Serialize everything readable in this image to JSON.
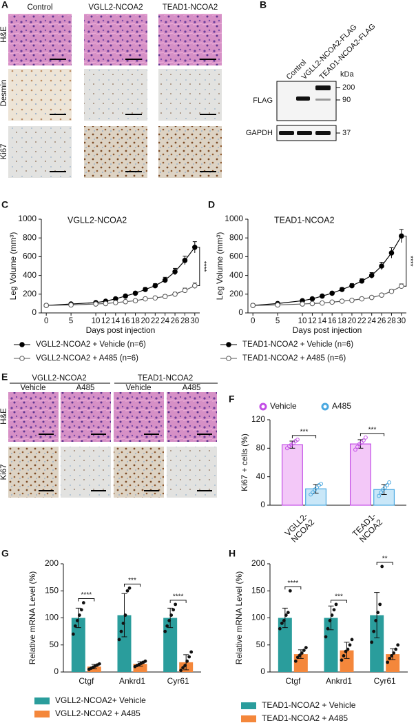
{
  "panel_labels": [
    "A",
    "B",
    "C",
    "D",
    "E",
    "F",
    "G",
    "H"
  ],
  "histology_a": {
    "columns": [
      "Control",
      "VGLL2-NCOA2",
      "TEAD1-NCOA2"
    ],
    "rows": [
      "H&E",
      "Desmin",
      "Ki67"
    ]
  },
  "blot_b": {
    "lanes": [
      "Control",
      "VGLL2-NCOA2-FLAG",
      "TEAD1-NCOA2-FLAG"
    ],
    "bands": [
      "FLAG",
      "GAPDH"
    ],
    "unit": "kDa",
    "markers": [
      200,
      90,
      37
    ]
  },
  "histology_e": {
    "groups": [
      "VGLL2-NCOA2",
      "TEAD1-NCOA2"
    ],
    "treatments": [
      "Vehicle",
      "A485",
      "Vehicle",
      "A485"
    ],
    "rows": [
      "H&E",
      "Ki67"
    ]
  },
  "chart_data": [
    {
      "type": "line",
      "title": "VGLL2-NCOA2",
      "x_label": "Days post injection",
      "y_label": "Leg Volume (mm³)",
      "x": [
        0,
        5,
        10,
        12,
        14,
        16,
        18,
        20,
        22,
        24,
        26,
        28,
        30
      ],
      "xlim": [
        -1,
        31
      ],
      "xticks": [
        0,
        5,
        10,
        12,
        14,
        16,
        18,
        20,
        22,
        24,
        26,
        28,
        30
      ],
      "ylim": [
        0,
        1000
      ],
      "yticks": [
        0,
        200,
        400,
        600,
        800,
        1000
      ],
      "annotation": "****",
      "series": [
        {
          "name": "VGLL2-NCOA2 + Vehicle (n=6)",
          "color": "#000000",
          "marker": "filled",
          "values": [
            80,
            95,
            110,
            125,
            150,
            180,
            210,
            250,
            290,
            350,
            440,
            560,
            700
          ],
          "errors": [
            8,
            10,
            12,
            12,
            15,
            15,
            18,
            20,
            22,
            30,
            35,
            45,
            60
          ]
        },
        {
          "name": "VGLL2-NCOA2 + A485 (n=6)",
          "color": "#555555",
          "marker": "open",
          "values": [
            80,
            85,
            95,
            100,
            110,
            120,
            130,
            150,
            160,
            175,
            200,
            240,
            290
          ],
          "errors": [
            6,
            8,
            8,
            10,
            10,
            12,
            12,
            14,
            15,
            18,
            20,
            25,
            30
          ]
        }
      ]
    },
    {
      "type": "line",
      "title": "TEAD1-NCOA2",
      "x_label": "Days post injection",
      "y_label": "Leg Volume (mm³)",
      "x": [
        0,
        5,
        10,
        12,
        14,
        16,
        18,
        20,
        22,
        24,
        26,
        28,
        30
      ],
      "xlim": [
        -1,
        31
      ],
      "xticks": [
        0,
        5,
        10,
        12,
        14,
        16,
        18,
        20,
        22,
        24,
        26,
        28,
        30
      ],
      "ylim": [
        0,
        1000
      ],
      "yticks": [
        0,
        200,
        400,
        600,
        800,
        1000
      ],
      "annotation": "****",
      "series": [
        {
          "name": "TEAD1-NCOA2 + Vehicle (n=6)",
          "color": "#000000",
          "marker": "filled",
          "values": [
            80,
            100,
            130,
            150,
            180,
            210,
            250,
            290,
            340,
            400,
            500,
            640,
            820
          ],
          "errors": [
            8,
            10,
            12,
            14,
            15,
            18,
            20,
            22,
            25,
            30,
            40,
            55,
            70
          ]
        },
        {
          "name": "TEAD1-NCOA2 + A485 (n=6)",
          "color": "#555555",
          "marker": "open",
          "values": [
            80,
            85,
            95,
            100,
            105,
            115,
            125,
            135,
            150,
            165,
            190,
            230,
            285
          ],
          "errors": [
            6,
            8,
            8,
            8,
            10,
            10,
            12,
            12,
            14,
            15,
            18,
            22,
            25
          ]
        }
      ]
    },
    {
      "type": "bar",
      "style": "outlined",
      "legend": "top",
      "y_label": "Ki67 + cells (%)",
      "categories": [
        [
          "VGLL2-",
          "NCOA2"
        ],
        [
          "TEAD1-",
          "NCOA2"
        ]
      ],
      "ylim": [
        0,
        120
      ],
      "yticks": [
        0,
        40,
        80,
        120
      ],
      "annotations": [
        "***",
        "***"
      ],
      "series": [
        {
          "name": "Vehicle",
          "color": "#c34ee6",
          "fill": "#f3c8f8",
          "values": [
            85,
            86
          ],
          "errors": [
            5,
            6
          ],
          "points": [
            [
              80,
              83,
              85,
              87,
              90,
              92
            ],
            [
              78,
              82,
              86,
              88,
              91,
              95
            ]
          ]
        },
        {
          "name": "A485",
          "color": "#4aa8e0",
          "fill": "#c9e7f8",
          "values": [
            23,
            22
          ],
          "errors": [
            6,
            7
          ],
          "points": [
            [
              15,
              18,
              22,
              25,
              28,
              30
            ],
            [
              13,
              18,
              22,
              25,
              28,
              32
            ]
          ]
        }
      ]
    },
    {
      "type": "bar",
      "style": "solid",
      "legend": "bottom",
      "y_label": "Relative mRNA Level (%)",
      "categories": [
        "Ctgf",
        "Ankrd1",
        "Cyr61"
      ],
      "ylim": [
        0,
        200
      ],
      "yticks": [
        0,
        50,
        100,
        150,
        200
      ],
      "annotations": [
        "****",
        "***",
        "****"
      ],
      "series": [
        {
          "name": "VGLL2-NCOA2+ Vehicle",
          "color": "#2a9d9c",
          "values": [
            100,
            105,
            100
          ],
          "errors": [
            18,
            40,
            18
          ],
          "points": [
            [
              70,
              85,
              95,
              105,
              115,
              128
            ],
            [
              60,
              75,
              90,
              105,
              150,
              155
            ],
            [
              75,
              85,
              95,
              105,
              115,
              125
            ]
          ]
        },
        {
          "name": "VGLL2-NCOA2 + A485",
          "color": "#f4873b",
          "values": [
            10,
            15,
            18
          ],
          "errors": [
            4,
            4,
            14
          ],
          "points": [
            [
              5,
              7,
              9,
              11,
              13,
              15
            ],
            [
              10,
              12,
              14,
              16,
              18,
              20
            ],
            [
              3,
              8,
              12,
              20,
              28,
              37
            ]
          ]
        }
      ]
    },
    {
      "type": "bar",
      "style": "solid",
      "legend": "bottom",
      "y_label": "Relative mRNA Level (%)",
      "categories": [
        "Ctgf",
        "Ankrd1",
        "Cyr61"
      ],
      "ylim": [
        0,
        200
      ],
      "yticks": [
        0,
        50,
        100,
        150,
        200
      ],
      "annotations": [
        "****",
        "***",
        "**"
      ],
      "series": [
        {
          "name": "TEAD1-NCOA2 + Vehicle",
          "color": "#2a9d9c",
          "values": [
            100,
            100,
            105
          ],
          "errors": [
            18,
            22,
            42
          ],
          "points": [
            [
              80,
              90,
              95,
              105,
              110,
              150
            ],
            [
              65,
              80,
              95,
              105,
              115,
              125
            ],
            [
              55,
              75,
              95,
              110,
              125,
              195
            ]
          ]
        },
        {
          "name": "TEAD1-NCOA2 + A485",
          "color": "#f4873b",
          "values": [
            33,
            40,
            33
          ],
          "errors": [
            8,
            15,
            10
          ],
          "points": [
            [
              20,
              27,
              31,
              35,
              40,
              45
            ],
            [
              22,
              30,
              38,
              42,
              50,
              60
            ],
            [
              18,
              25,
              30,
              35,
              42,
              50
            ]
          ]
        }
      ]
    }
  ]
}
